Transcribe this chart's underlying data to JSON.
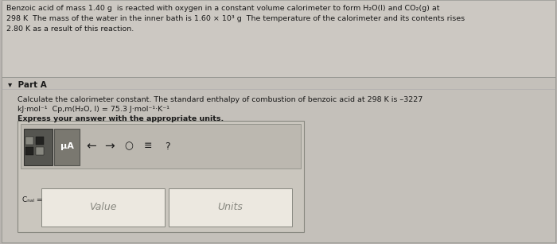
{
  "bg_color": "#b8b4b0",
  "header_bg": "#ccc8c2",
  "body_bg": "#c4c0ba",
  "text_color": "#1a1a1a",
  "header_line1": "Benzoic acid of mass 1.40 g  is reacted with oxygen in a constant volume calorimeter to form H₂O(l) and CO₂(g) at",
  "header_line2": "298 K  The mass of the water in the inner bath is 1.60 × 10³ g  The temperature of the calorimeter and its contents rises",
  "header_line3": "2.80 K as a result of this reaction.",
  "part_a": "▾  Part A",
  "calc_line1": "Calculate the calorimeter constant. The standard enthalpy of combustion of benzoic acid at 298 K is –3227",
  "calc_line2": "kJ·mol⁻¹  Cp,m(H₂O, l) = 75.3 J·mol⁻¹·K⁻¹",
  "express": "Express your answer with the appropriate units.",
  "ccal": "Cₙₐₗ =",
  "value_placeholder": "Value",
  "units_placeholder": "Units",
  "input_box_bg": "#cac6be",
  "input_box_border": "#888880",
  "field_bg": "#ece8e0",
  "field_border": "#888880",
  "toolbar_bg": "#bcb8b0",
  "btn_dark_bg": "#555550",
  "btn_ua_bg": "#7a7870",
  "font_size_header": 6.8,
  "font_size_body": 6.8,
  "font_size_parta": 7.5,
  "font_size_icon": 9.0
}
